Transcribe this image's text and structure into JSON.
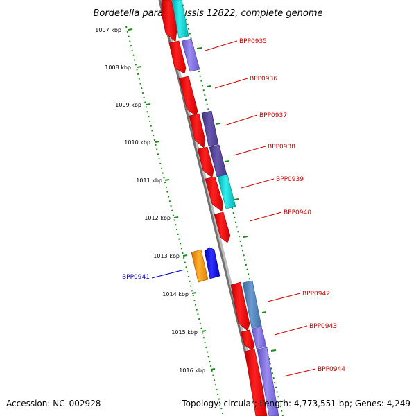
{
  "title": "Bordetella parapertussis 12822, complete genome",
  "accession": "Accession: NC_002928",
  "topology": "Topology: circular; Length: 4,773,551 bp; Genes: 4,249",
  "colors": {
    "backbone": "#808080",
    "ruler": "#1a8a1a",
    "cds_forward": "#ff0000",
    "label_forward": "#cc0000",
    "label_reverse": "#0000cc",
    "orange": "#ff9900",
    "blue": "#0000ff",
    "cyan": "#00cccc",
    "violet": "#8070dd",
    "indigo": "#554499",
    "steel": "#4a7fb5"
  },
  "tick_labels": [
    "1007 kbp",
    "1008 kbp",
    "1009 kbp",
    "1010 kbp",
    "1011 kbp",
    "1012 kbp",
    "1013 kbp",
    "1014 kbp",
    "1015 kbp",
    "1016 kbp"
  ],
  "gene_labels": [
    {
      "text": "BPP0935",
      "strand": "forward"
    },
    {
      "text": "BPP0936",
      "strand": "forward"
    },
    {
      "text": "BPP0937",
      "strand": "forward"
    },
    {
      "text": "BPP0938",
      "strand": "forward"
    },
    {
      "text": "BPP0939",
      "strand": "forward"
    },
    {
      "text": "BPP0940",
      "strand": "forward"
    },
    {
      "text": "BPP0941",
      "strand": "reverse"
    },
    {
      "text": "BPP0942",
      "strand": "forward"
    },
    {
      "text": "BPP0943",
      "strand": "forward"
    },
    {
      "text": "BPP0944",
      "strand": "forward"
    }
  ]
}
